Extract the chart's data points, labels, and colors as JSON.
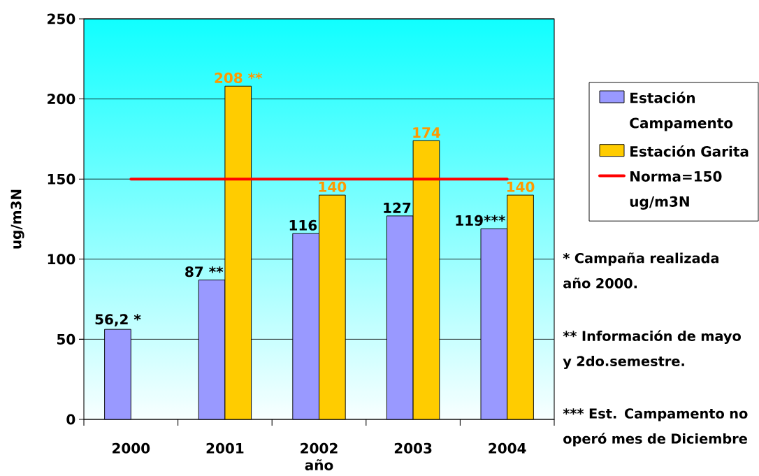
{
  "chart_data": {
    "type": "bar",
    "categories": [
      "2000",
      "2001",
      "2002",
      "2003",
      "2004"
    ],
    "xlabel": "año",
    "ylabel": "ug/m3N",
    "ylim": [
      0,
      250
    ],
    "yticks": [
      0,
      50,
      100,
      150,
      200,
      250
    ],
    "grid": "y",
    "legend": "right",
    "series": [
      {
        "name": "Estación Campamento",
        "color": "#9999ff",
        "values": [
          56.2,
          87,
          116,
          127,
          119
        ],
        "value_labels": [
          "56,2 *",
          "87 **",
          "116",
          "127",
          "119***"
        ]
      },
      {
        "name": "Estación Garita",
        "color": "#ffcc00",
        "values": [
          null,
          208,
          140,
          174,
          140
        ],
        "value_labels": [
          null,
          "208 **",
          "140",
          "174",
          "140"
        ]
      },
      {
        "name": "Norma=150 ug/m3N",
        "type": "line",
        "color": "#ff0000",
        "values": [
          150,
          150,
          150,
          150,
          150
        ]
      }
    ],
    "annotations": [
      "* Campaña realizada año 2000.",
      "** Información de mayo y 2do.semestre.",
      "*** Est. Campamento no operó mes de Diciembre"
    ]
  }
}
